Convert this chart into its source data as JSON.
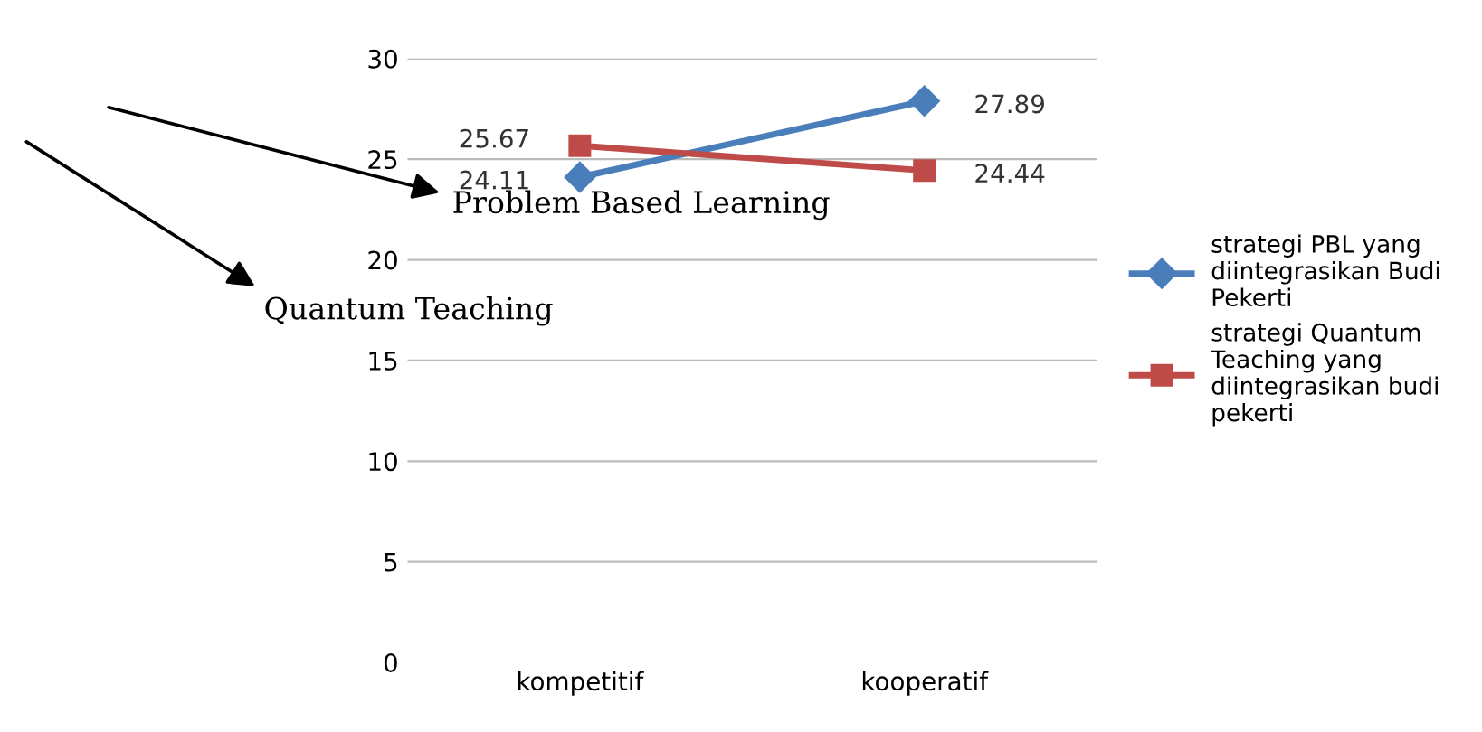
{
  "chart_data": {
    "type": "line",
    "categories": [
      "kompetitif",
      "kooperatif"
    ],
    "series": [
      {
        "name": "strategi PBL yang diintegrasikan Budi Pekerti",
        "color": "#4a7ebb",
        "values": [
          24.11,
          27.89
        ],
        "marker": "diamond"
      },
      {
        "name": "strategi Quantum Teaching yang diintegrasikan budi pekerti",
        "color": "#be4b48",
        "values": [
          25.67,
          24.44
        ],
        "marker": "square"
      }
    ],
    "ylim": [
      0,
      30
    ],
    "yticks": [
      0,
      5,
      10,
      15,
      20,
      25,
      30
    ],
    "grid": "y",
    "legend": "right",
    "data_labels": true,
    "annotations": [
      "Problem Based Learning",
      "Quantum Teaching"
    ]
  }
}
